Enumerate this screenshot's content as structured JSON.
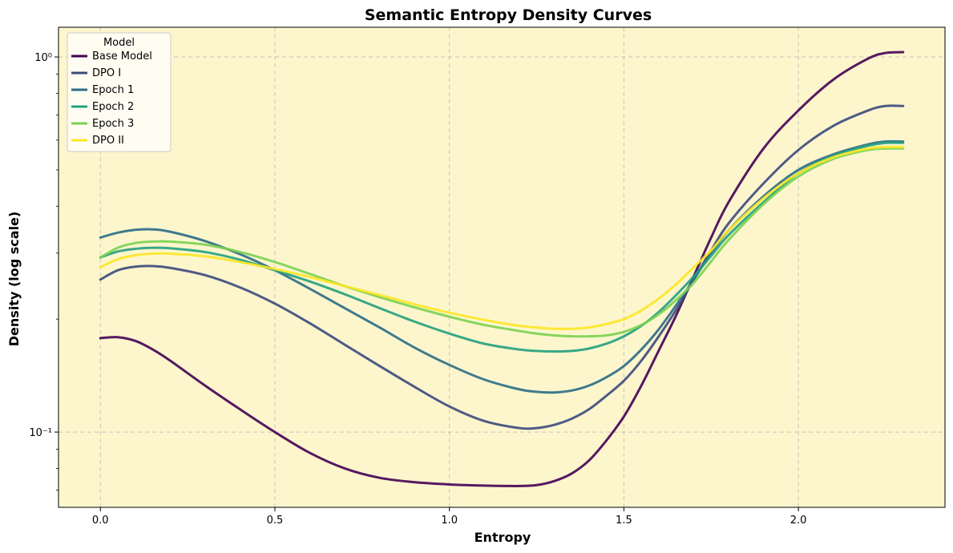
{
  "chart_data": {
    "type": "line",
    "title": "Semantic Entropy Density Curves",
    "xlabel": "Entropy",
    "ylabel": "Density (log scale)",
    "xlim": [
      -0.12,
      2.42
    ],
    "ylim": [
      0.063,
      1.2
    ],
    "yscale": "log",
    "x_ticks": [
      0.0,
      0.5,
      1.0,
      1.5,
      2.0
    ],
    "x_tick_labels": [
      "0.0",
      "0.5",
      "1.0",
      "1.5",
      "2.0"
    ],
    "y_ticks": [
      0.1,
      1.0
    ],
    "y_tick_labels": [
      "10⁻¹",
      "10⁰"
    ],
    "y_minor_ticks": [
      0.07,
      0.08,
      0.09,
      0.2,
      0.3,
      0.4,
      0.5,
      0.6,
      0.7,
      0.8,
      0.9
    ],
    "grid": true,
    "background": "#fdf6cd",
    "legend": {
      "title": "Model",
      "position": "top-left"
    },
    "x": [
      0.0,
      0.05,
      0.1,
      0.15,
      0.2,
      0.3,
      0.4,
      0.5,
      0.6,
      0.7,
      0.8,
      0.9,
      1.0,
      1.1,
      1.2,
      1.25,
      1.3,
      1.35,
      1.4,
      1.45,
      1.5,
      1.55,
      1.6,
      1.65,
      1.7,
      1.75,
      1.8,
      1.9,
      2.0,
      2.1,
      2.2,
      2.25,
      2.3
    ],
    "series": [
      {
        "name": "Base Model",
        "color": "#440154",
        "values": [
          0.178,
          0.179,
          0.175,
          0.166,
          0.155,
          0.133,
          0.115,
          0.1,
          0.088,
          0.08,
          0.0755,
          0.0735,
          0.0725,
          0.072,
          0.0718,
          0.0722,
          0.074,
          0.0775,
          0.084,
          0.095,
          0.11,
          0.133,
          0.165,
          0.205,
          0.26,
          0.33,
          0.41,
          0.57,
          0.72,
          0.87,
          0.99,
          1.025,
          1.03
        ]
      },
      {
        "name": "DPO I",
        "color": "#3b4a7c",
        "values": [
          0.255,
          0.27,
          0.276,
          0.277,
          0.274,
          0.262,
          0.243,
          0.22,
          0.195,
          0.171,
          0.15,
          0.132,
          0.117,
          0.107,
          0.1025,
          0.1025,
          0.1045,
          0.1085,
          0.115,
          0.125,
          0.137,
          0.155,
          0.18,
          0.212,
          0.255,
          0.305,
          0.36,
          0.46,
          0.565,
          0.655,
          0.72,
          0.74,
          0.74
        ]
      },
      {
        "name": "Epoch 1",
        "color": "#2a6d86",
        "values": [
          0.33,
          0.34,
          0.346,
          0.347,
          0.342,
          0.323,
          0.298,
          0.27,
          0.241,
          0.214,
          0.19,
          0.168,
          0.151,
          0.138,
          0.13,
          0.128,
          0.1275,
          0.129,
          0.133,
          0.14,
          0.15,
          0.166,
          0.188,
          0.218,
          0.255,
          0.3,
          0.345,
          0.425,
          0.5,
          0.55,
          0.585,
          0.595,
          0.595
        ]
      },
      {
        "name": "Epoch 2",
        "color": "#22a07e",
        "values": [
          0.292,
          0.303,
          0.308,
          0.31,
          0.309,
          0.302,
          0.288,
          0.27,
          0.252,
          0.233,
          0.214,
          0.197,
          0.183,
          0.172,
          0.166,
          0.1645,
          0.164,
          0.1645,
          0.167,
          0.172,
          0.18,
          0.192,
          0.209,
          0.232,
          0.26,
          0.295,
          0.335,
          0.41,
          0.49,
          0.545,
          0.58,
          0.59,
          0.59
        ]
      },
      {
        "name": "Epoch 3",
        "color": "#7ad151",
        "values": [
          0.292,
          0.31,
          0.319,
          0.322,
          0.322,
          0.316,
          0.302,
          0.284,
          0.264,
          0.245,
          0.229,
          0.215,
          0.203,
          0.193,
          0.186,
          0.183,
          0.181,
          0.18,
          0.18,
          0.181,
          0.185,
          0.193,
          0.206,
          0.225,
          0.25,
          0.285,
          0.325,
          0.405,
          0.48,
          0.535,
          0.565,
          0.57,
          0.57
        ]
      },
      {
        "name": "DPO II",
        "color": "#fde725",
        "values": [
          0.275,
          0.289,
          0.296,
          0.299,
          0.299,
          0.294,
          0.284,
          0.272,
          0.259,
          0.245,
          0.232,
          0.219,
          0.208,
          0.199,
          0.192,
          0.19,
          0.1885,
          0.1885,
          0.19,
          0.194,
          0.2,
          0.211,
          0.227,
          0.248,
          0.275,
          0.305,
          0.345,
          0.42,
          0.49,
          0.54,
          0.57,
          0.575,
          0.575
        ]
      }
    ]
  }
}
